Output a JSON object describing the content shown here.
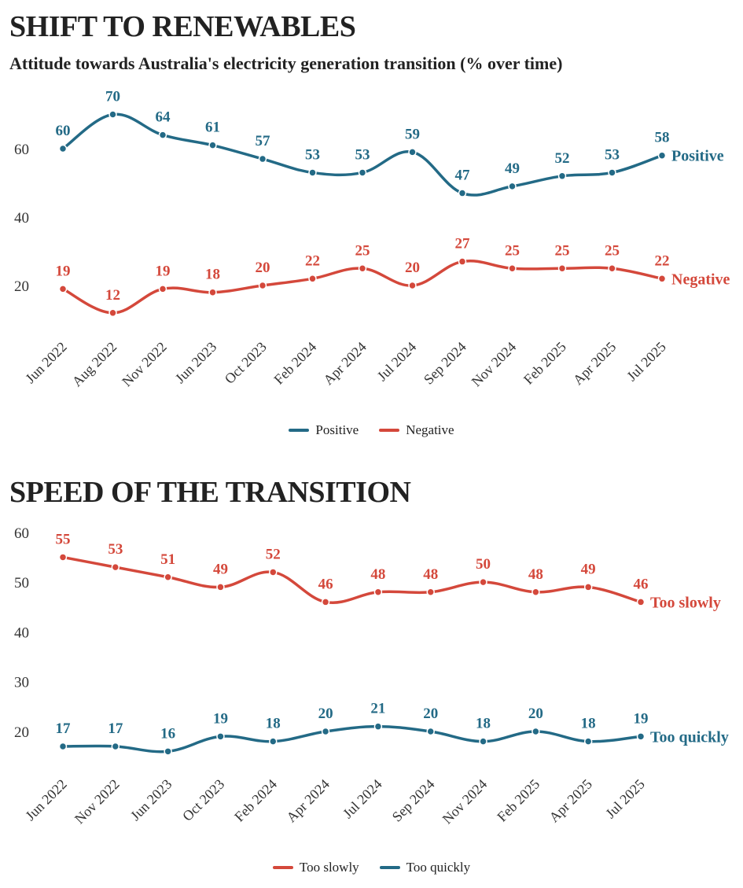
{
  "colors": {
    "blue": "#236a86",
    "red": "#d4483b"
  },
  "chart_data": [
    {
      "type": "line",
      "title": "SHIFT TO RENEWABLES",
      "subtitle": "Attitude towards Australia's electricity generation transition (% over time)",
      "categories": [
        "Jun 2022",
        "Aug 2022",
        "Nov 2022",
        "Jun 2023",
        "Oct 2023",
        "Feb 2024",
        "Apr 2024",
        "Jul 2024",
        "Sep 2024",
        "Nov 2024",
        "Feb 2025",
        "Apr 2025",
        "Jul 2025"
      ],
      "yticks": [
        20,
        40,
        60
      ],
      "series": [
        {
          "name": "Positive",
          "color": "#236a86",
          "values": [
            60,
            70,
            64,
            61,
            57,
            53,
            53,
            59,
            47,
            49,
            52,
            53,
            58
          ]
        },
        {
          "name": "Negative",
          "color": "#d4483b",
          "values": [
            19,
            12,
            19,
            18,
            20,
            22,
            25,
            20,
            27,
            25,
            25,
            25,
            22
          ]
        }
      ],
      "legend": [
        "Positive",
        "Negative"
      ],
      "legend_position": "bottom-center"
    },
    {
      "type": "line",
      "title": "SPEED OF THE TRANSITION",
      "subtitle": "",
      "categories": [
        "Jun 2022",
        "Nov 2022",
        "Jun 2023",
        "Oct 2023",
        "Feb 2024",
        "Apr 2024",
        "Jul 2024",
        "Sep 2024",
        "Nov 2024",
        "Feb 2025",
        "Apr 2025",
        "Jul 2025"
      ],
      "yticks": [
        20,
        30,
        40,
        50,
        60
      ],
      "series": [
        {
          "name": "Too slowly",
          "color": "#d4483b",
          "values": [
            55,
            53,
            51,
            49,
            52,
            46,
            48,
            48,
            50,
            48,
            49,
            46
          ]
        },
        {
          "name": "Too quickly",
          "color": "#236a86",
          "values": [
            17,
            17,
            16,
            19,
            18,
            20,
            21,
            20,
            18,
            20,
            18,
            19
          ]
        }
      ],
      "legend": [
        "Too slowly",
        "Too quickly"
      ],
      "legend_position": "bottom-center"
    }
  ]
}
